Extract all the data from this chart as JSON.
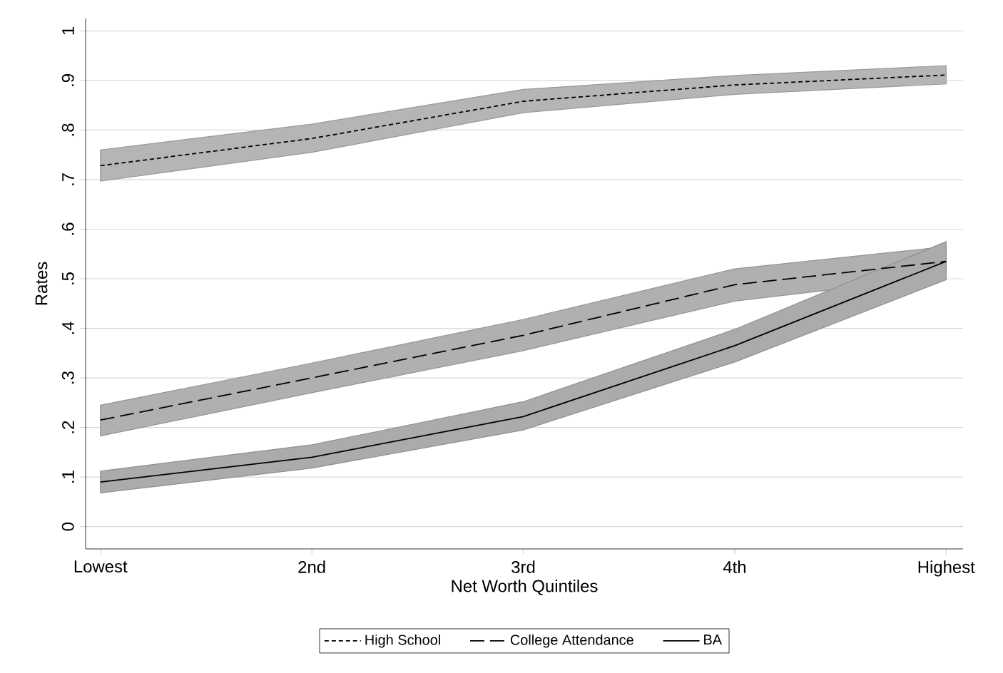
{
  "chart_data": {
    "type": "line",
    "xlabel": "Net Worth Quintiles",
    "ylabel": "Rates",
    "categories": [
      "Lowest",
      "2nd",
      "3rd",
      "4th",
      "Highest"
    ],
    "ylim": [
      -0.045,
      1.025
    ],
    "yticks": [
      0,
      {
        "value": 0.1,
        "label": ".1"
      },
      {
        "value": 0.2,
        "label": ".2"
      },
      {
        "value": 0.3,
        "label": ".3"
      },
      {
        "value": 0.4,
        "label": ".4"
      },
      {
        "value": 0.5,
        "label": ".5"
      },
      {
        "value": 0.6,
        "label": ".6"
      },
      {
        "value": 0.7,
        "label": ".7"
      },
      {
        "value": 0.8,
        "label": ".8"
      },
      {
        "value": 0.9,
        "label": ".9"
      },
      1
    ],
    "grid": "y",
    "legend": "bottom",
    "marker": "none",
    "series": [
      {
        "name": "High School",
        "color": "#000000",
        "line_style": "dotted",
        "values": [
          0.728,
          0.783,
          0.858,
          0.891,
          0.911
        ],
        "lower": [
          0.697,
          0.755,
          0.835,
          0.872,
          0.893
        ],
        "upper": [
          0.76,
          0.812,
          0.882,
          0.91,
          0.93
        ]
      },
      {
        "name": "College Attendance",
        "color": "#000000",
        "line_style": "dashed",
        "values": [
          0.215,
          0.3,
          0.386,
          0.488,
          0.535
        ],
        "lower": [
          0.183,
          0.27,
          0.355,
          0.455,
          0.505
        ],
        "upper": [
          0.245,
          0.33,
          0.418,
          0.52,
          0.565
        ]
      },
      {
        "name": "BA",
        "color": "#000000",
        "line_style": "solid",
        "values": [
          0.09,
          0.14,
          0.222,
          0.365,
          0.535
        ],
        "lower": [
          0.068,
          0.118,
          0.195,
          0.332,
          0.498
        ],
        "upper": [
          0.112,
          0.165,
          0.252,
          0.398,
          0.575
        ]
      }
    ]
  }
}
